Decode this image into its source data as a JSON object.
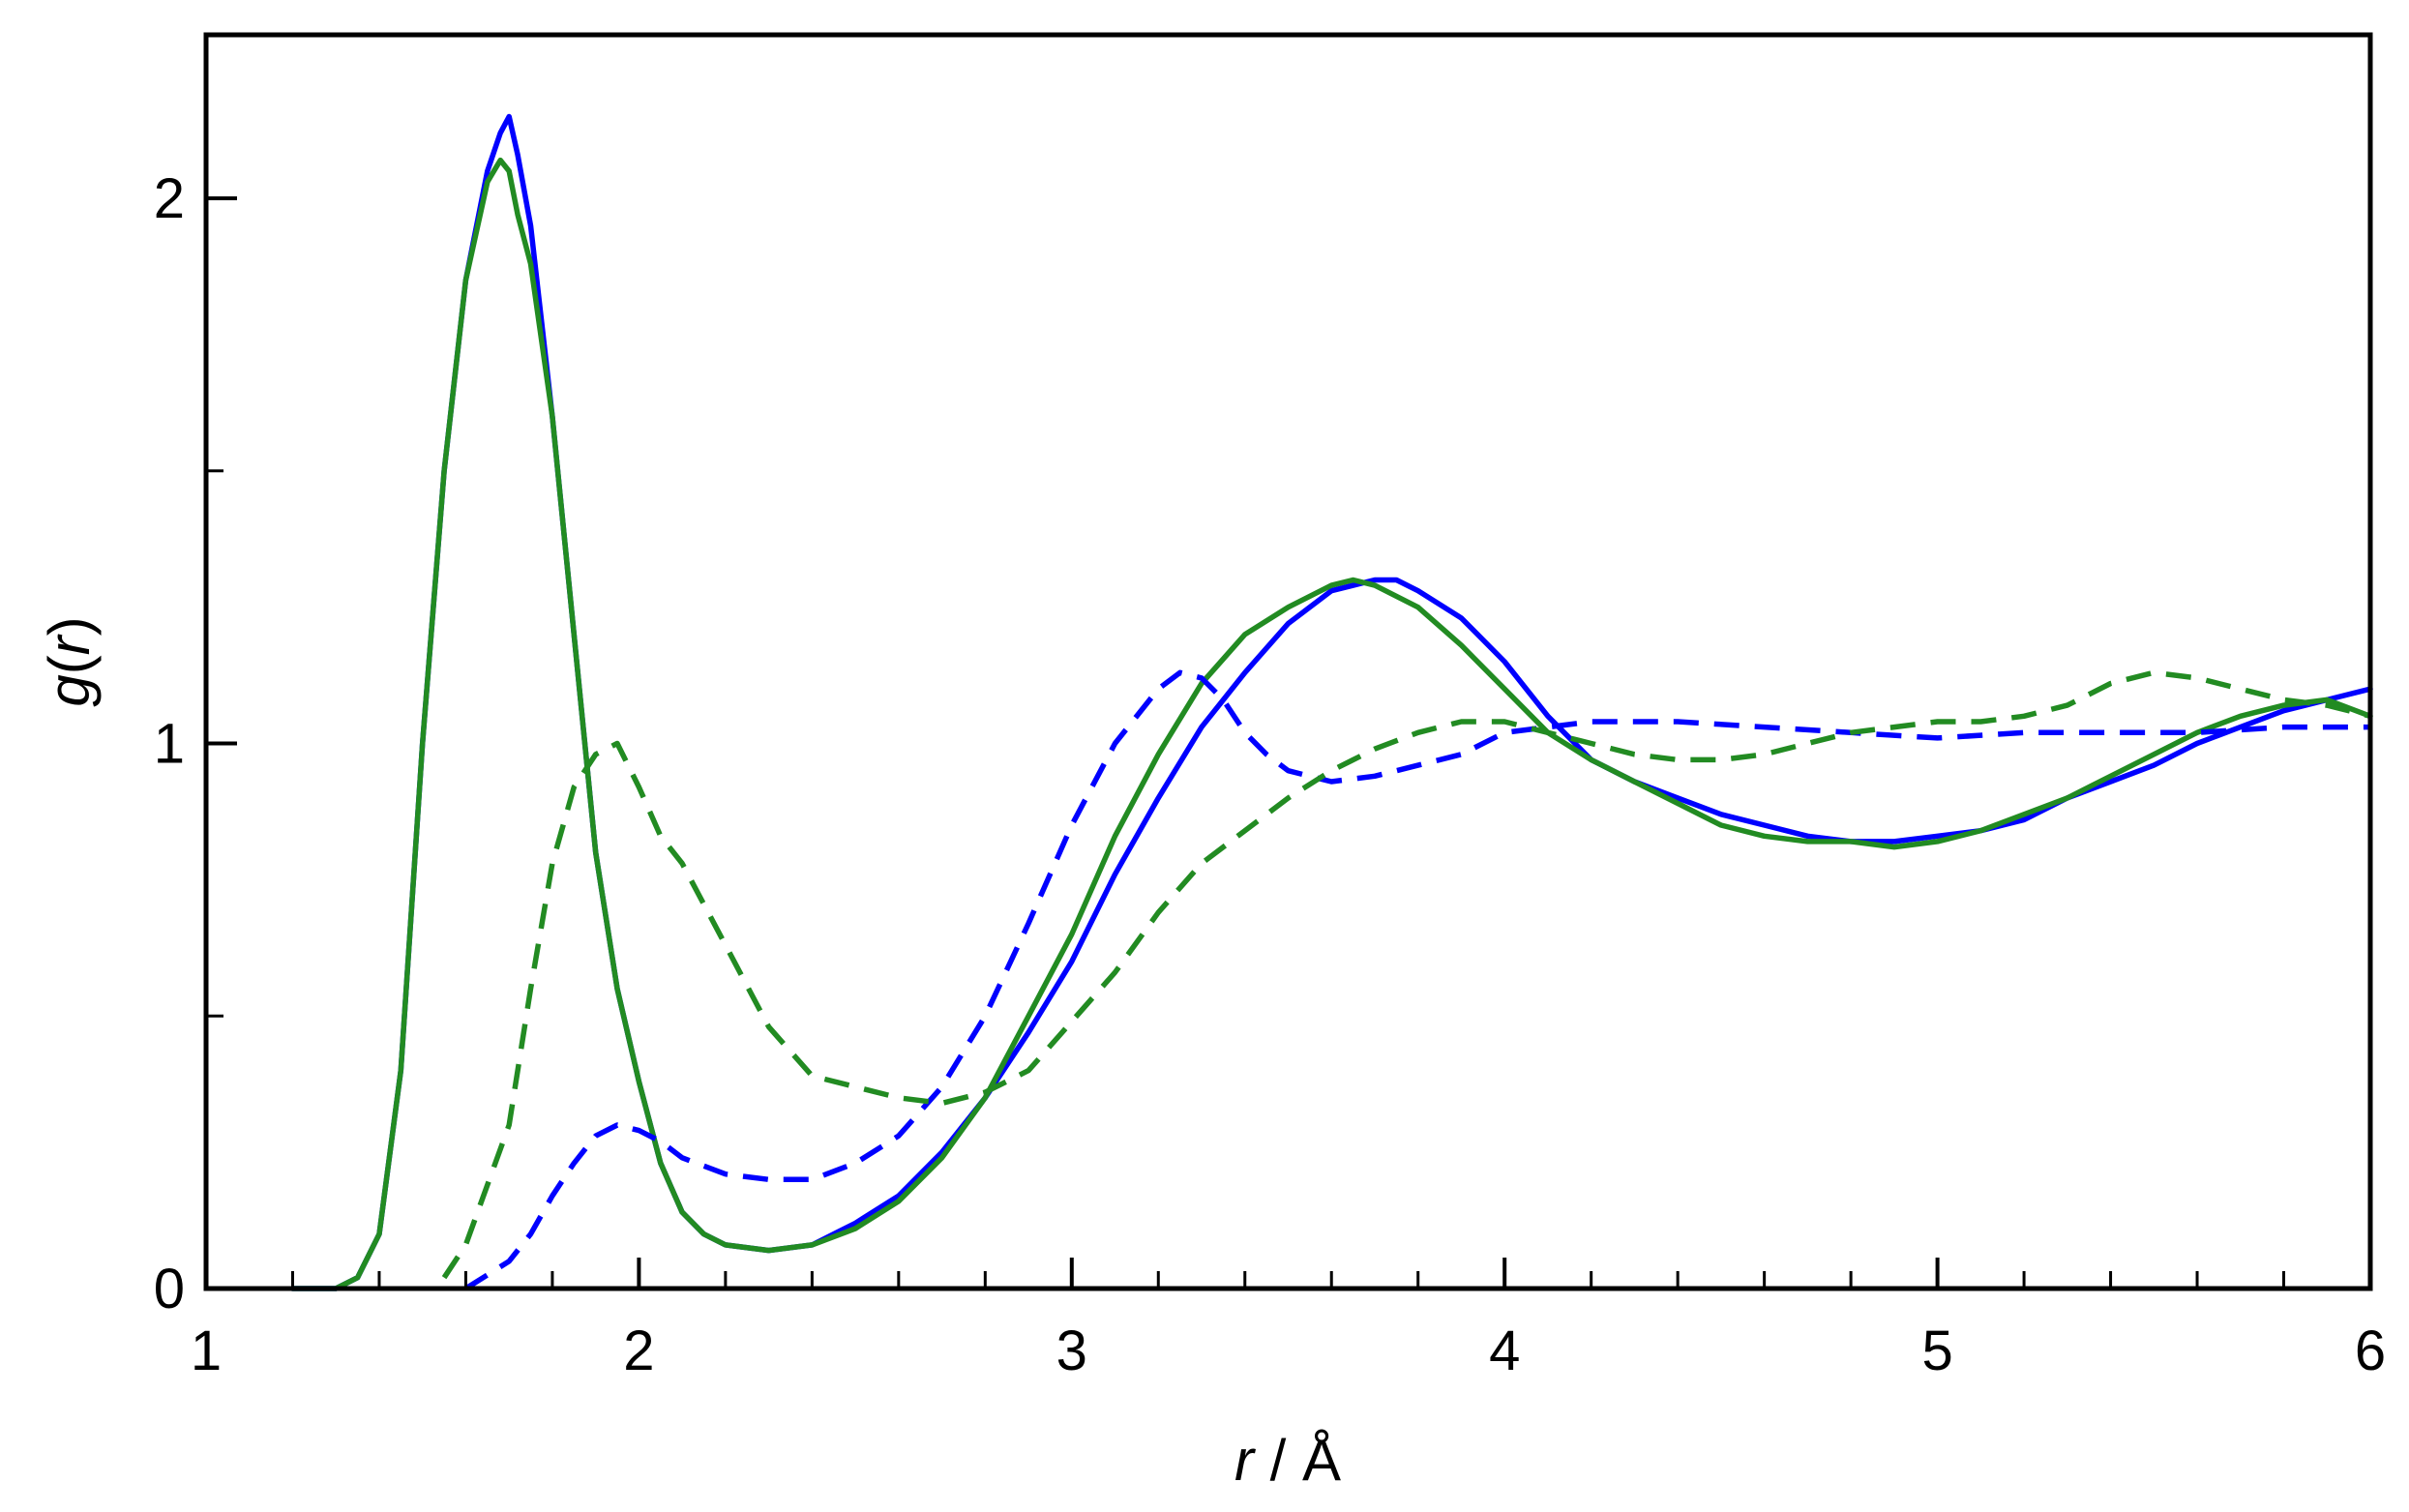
{
  "chart_data": {
    "type": "line",
    "title": "",
    "xlabel": {
      "var": "r",
      "rest": " / Å"
    },
    "ylabel": {
      "var1": "g",
      "open": "(",
      "var2": "r",
      "close": ")"
    },
    "xlim": [
      1,
      6
    ],
    "ylim": [
      0,
      2.3
    ],
    "x_ticks": [
      1,
      2,
      3,
      4,
      5,
      6
    ],
    "x_tick_labels": [
      "1",
      "2",
      "3",
      "4",
      "5",
      "6"
    ],
    "x_minor_step": 0.2,
    "y_ticks": [
      0,
      1,
      2
    ],
    "y_tick_labels": [
      "0",
      "1",
      "2"
    ],
    "y_minor": [
      0.5,
      1.5
    ],
    "grid": false,
    "legend": "none",
    "series": [
      {
        "color": "#0000ff",
        "dash": "solid",
        "x": [
          1.2,
          1.3,
          1.35,
          1.4,
          1.45,
          1.5,
          1.55,
          1.6,
          1.65,
          1.68,
          1.7,
          1.72,
          1.75,
          1.8,
          1.85,
          1.9,
          1.95,
          2.0,
          2.05,
          2.1,
          2.15,
          2.2,
          2.3,
          2.4,
          2.5,
          2.6,
          2.7,
          2.8,
          2.9,
          3.0,
          3.1,
          3.2,
          3.3,
          3.4,
          3.5,
          3.6,
          3.7,
          3.75,
          3.8,
          3.9,
          4.0,
          4.1,
          4.2,
          4.3,
          4.4,
          4.5,
          4.6,
          4.7,
          4.8,
          4.9,
          5.0,
          5.1,
          5.2,
          5.3,
          5.4,
          5.5,
          5.6,
          5.7,
          5.8,
          5.9,
          6.0
        ],
        "y": [
          0.0,
          0.0,
          0.02,
          0.1,
          0.4,
          1.0,
          1.5,
          1.85,
          2.05,
          2.12,
          2.15,
          2.08,
          1.95,
          1.6,
          1.2,
          0.8,
          0.55,
          0.38,
          0.23,
          0.14,
          0.1,
          0.08,
          0.07,
          0.08,
          0.12,
          0.17,
          0.25,
          0.35,
          0.47,
          0.6,
          0.76,
          0.9,
          1.03,
          1.13,
          1.22,
          1.28,
          1.3,
          1.3,
          1.28,
          1.23,
          1.15,
          1.05,
          0.97,
          0.93,
          0.9,
          0.87,
          0.85,
          0.83,
          0.82,
          0.82,
          0.83,
          0.84,
          0.86,
          0.9,
          0.93,
          0.96,
          1.0,
          1.03,
          1.06,
          1.08,
          1.1
        ]
      },
      {
        "color": "#228b22",
        "dash": "solid",
        "x": [
          1.2,
          1.3,
          1.35,
          1.4,
          1.45,
          1.5,
          1.55,
          1.6,
          1.65,
          1.68,
          1.7,
          1.72,
          1.75,
          1.8,
          1.85,
          1.9,
          1.95,
          2.0,
          2.05,
          2.1,
          2.15,
          2.2,
          2.3,
          2.4,
          2.5,
          2.6,
          2.7,
          2.8,
          2.9,
          3.0,
          3.1,
          3.2,
          3.3,
          3.4,
          3.5,
          3.6,
          3.65,
          3.7,
          3.8,
          3.9,
          4.0,
          4.1,
          4.2,
          4.3,
          4.4,
          4.5,
          4.6,
          4.7,
          4.8,
          4.9,
          5.0,
          5.1,
          5.2,
          5.3,
          5.4,
          5.5,
          5.6,
          5.7,
          5.8,
          5.9,
          6.0
        ],
        "y": [
          0.0,
          0.0,
          0.02,
          0.1,
          0.4,
          1.0,
          1.5,
          1.85,
          2.03,
          2.07,
          2.05,
          1.97,
          1.88,
          1.6,
          1.2,
          0.8,
          0.55,
          0.38,
          0.23,
          0.14,
          0.1,
          0.08,
          0.07,
          0.08,
          0.11,
          0.16,
          0.24,
          0.35,
          0.5,
          0.65,
          0.83,
          0.98,
          1.11,
          1.2,
          1.25,
          1.29,
          1.3,
          1.29,
          1.25,
          1.18,
          1.1,
          1.02,
          0.97,
          0.93,
          0.89,
          0.85,
          0.83,
          0.82,
          0.82,
          0.81,
          0.82,
          0.84,
          0.87,
          0.9,
          0.94,
          0.98,
          1.02,
          1.05,
          1.07,
          1.08,
          1.05
        ]
      },
      {
        "color": "#0000ff",
        "dash": "dashed",
        "x": [
          1.6,
          1.7,
          1.75,
          1.8,
          1.85,
          1.9,
          1.95,
          2.0,
          2.05,
          2.1,
          2.2,
          2.3,
          2.4,
          2.5,
          2.6,
          2.7,
          2.8,
          2.9,
          3.0,
          3.1,
          3.2,
          3.25,
          3.3,
          3.35,
          3.4,
          3.45,
          3.5,
          3.6,
          3.7,
          3.8,
          3.9,
          4.0,
          4.2,
          4.4,
          4.6,
          4.8,
          5.0,
          5.2,
          5.4,
          5.6,
          5.8,
          6.0
        ],
        "y": [
          0.0,
          0.05,
          0.1,
          0.17,
          0.23,
          0.28,
          0.3,
          0.29,
          0.27,
          0.24,
          0.21,
          0.2,
          0.2,
          0.23,
          0.28,
          0.37,
          0.5,
          0.67,
          0.85,
          1.0,
          1.1,
          1.13,
          1.12,
          1.08,
          1.02,
          0.98,
          0.95,
          0.93,
          0.94,
          0.96,
          0.98,
          1.02,
          1.04,
          1.04,
          1.03,
          1.02,
          1.01,
          1.02,
          1.02,
          1.02,
          1.03,
          1.03
        ]
      },
      {
        "color": "#228b22",
        "dash": "dashed",
        "x": [
          1.55,
          1.6,
          1.7,
          1.75,
          1.8,
          1.85,
          1.9,
          1.95,
          2.0,
          2.05,
          2.1,
          2.2,
          2.3,
          2.4,
          2.5,
          2.6,
          2.7,
          2.8,
          2.9,
          3.0,
          3.1,
          3.2,
          3.3,
          3.4,
          3.5,
          3.6,
          3.7,
          3.8,
          3.9,
          4.0,
          4.1,
          4.2,
          4.3,
          4.4,
          4.5,
          4.6,
          4.7,
          4.8,
          4.9,
          5.0,
          5.1,
          5.2,
          5.3,
          5.4,
          5.5,
          5.6,
          5.7,
          5.8,
          5.9,
          6.0
        ],
        "y": [
          0.02,
          0.08,
          0.3,
          0.55,
          0.78,
          0.92,
          0.98,
          1.0,
          0.92,
          0.83,
          0.78,
          0.63,
          0.48,
          0.39,
          0.37,
          0.35,
          0.34,
          0.36,
          0.4,
          0.49,
          0.58,
          0.69,
          0.78,
          0.84,
          0.9,
          0.95,
          0.99,
          1.02,
          1.04,
          1.04,
          1.02,
          1.0,
          0.98,
          0.97,
          0.97,
          0.98,
          1.0,
          1.02,
          1.03,
          1.04,
          1.04,
          1.05,
          1.07,
          1.11,
          1.13,
          1.12,
          1.1,
          1.08,
          1.07,
          1.05
        ]
      }
    ]
  }
}
